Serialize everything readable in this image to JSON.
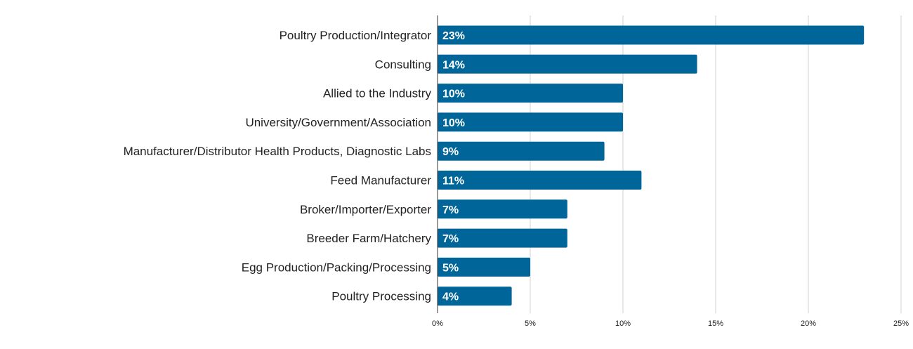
{
  "chart_data": {
    "type": "bar",
    "orientation": "horizontal",
    "categories": [
      "Poultry Production/Integrator",
      "Consulting",
      "Allied to the Industry",
      "University/Government/Association",
      "Manufacturer/Distributor Health Products, Diagnostic Labs",
      "Feed Manufacturer",
      "Broker/Importer/Exporter",
      "Breeder Farm/Hatchery",
      "Egg Production/Packing/Processing",
      "Poultry Processing"
    ],
    "values": [
      23,
      14,
      10,
      10,
      9,
      11,
      7,
      7,
      5,
      4
    ],
    "data_labels": [
      "23%",
      "14%",
      "10%",
      "10%",
      "9%",
      "11%",
      "7%",
      "7%",
      "5%",
      "4%"
    ],
    "x_ticks": [
      0,
      5,
      10,
      15,
      20,
      25
    ],
    "x_tick_labels": [
      "0%",
      "5%",
      "10%",
      "15%",
      "20%",
      "25%"
    ],
    "xlim": [
      0,
      25
    ],
    "grid": true,
    "bar_color": "#00669a",
    "title": "",
    "xlabel": "",
    "ylabel": ""
  }
}
